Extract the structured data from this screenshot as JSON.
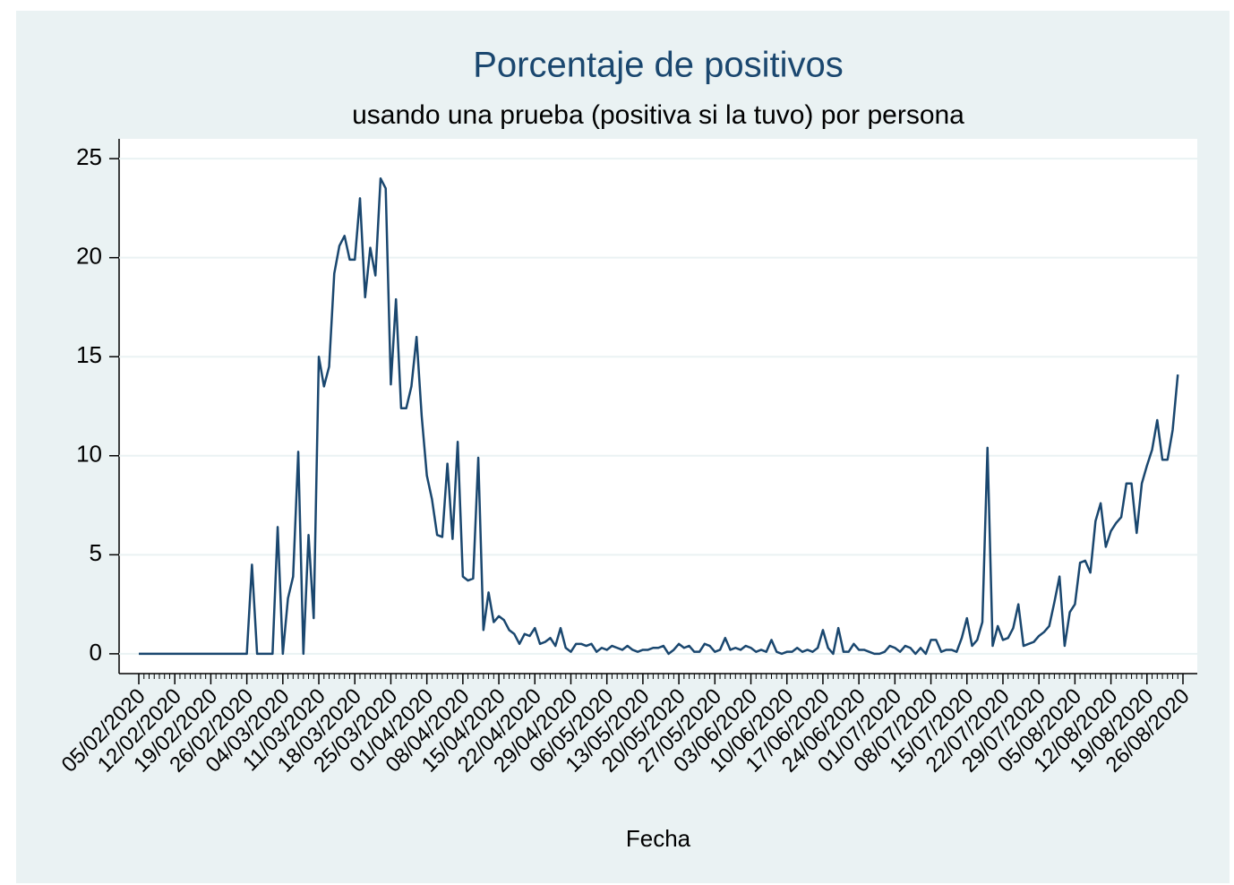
{
  "chart_data": {
    "type": "line",
    "title": "Porcentaje de positivos",
    "subtitle": "usando una prueba (positiva si la tuvo) por persona",
    "xlabel": "Fecha",
    "color": "#1a476f",
    "grid": true,
    "x": [
      "05/02/2020",
      "06/02/2020",
      "07/02/2020",
      "08/02/2020",
      "09/02/2020",
      "10/02/2020",
      "11/02/2020",
      "12/02/2020",
      "13/02/2020",
      "14/02/2020",
      "15/02/2020",
      "16/02/2020",
      "17/02/2020",
      "18/02/2020",
      "19/02/2020",
      "20/02/2020",
      "21/02/2020",
      "22/02/2020",
      "23/02/2020",
      "24/02/2020",
      "25/02/2020",
      "26/02/2020",
      "27/02/2020",
      "28/02/2020",
      "29/02/2020",
      "01/03/2020",
      "02/03/2020",
      "03/03/2020",
      "04/03/2020",
      "05/03/2020",
      "06/03/2020",
      "07/03/2020",
      "08/03/2020",
      "09/03/2020",
      "10/03/2020",
      "11/03/2020",
      "12/03/2020",
      "13/03/2020",
      "14/03/2020",
      "15/03/2020",
      "16/03/2020",
      "17/03/2020",
      "18/03/2020",
      "19/03/2020",
      "20/03/2020",
      "21/03/2020",
      "22/03/2020",
      "23/03/2020",
      "24/03/2020",
      "25/03/2020",
      "26/03/2020",
      "27/03/2020",
      "28/03/2020",
      "29/03/2020",
      "30/03/2020",
      "31/03/2020",
      "01/04/2020",
      "02/04/2020",
      "03/04/2020",
      "04/04/2020",
      "05/04/2020",
      "06/04/2020",
      "07/04/2020",
      "08/04/2020",
      "09/04/2020",
      "10/04/2020",
      "11/04/2020",
      "12/04/2020",
      "13/04/2020",
      "14/04/2020",
      "15/04/2020",
      "16/04/2020",
      "17/04/2020",
      "18/04/2020",
      "19/04/2020",
      "20/04/2020",
      "21/04/2020",
      "22/04/2020",
      "23/04/2020",
      "24/04/2020",
      "25/04/2020",
      "26/04/2020",
      "27/04/2020",
      "28/04/2020",
      "29/04/2020",
      "30/04/2020",
      "01/05/2020",
      "02/05/2020",
      "03/05/2020",
      "04/05/2020",
      "05/05/2020",
      "06/05/2020",
      "07/05/2020",
      "08/05/2020",
      "09/05/2020",
      "10/05/2020",
      "11/05/2020",
      "12/05/2020",
      "13/05/2020",
      "14/05/2020",
      "15/05/2020",
      "16/05/2020",
      "17/05/2020",
      "18/05/2020",
      "19/05/2020",
      "20/05/2020",
      "21/05/2020",
      "22/05/2020",
      "23/05/2020",
      "24/05/2020",
      "25/05/2020",
      "26/05/2020",
      "27/05/2020",
      "28/05/2020",
      "29/05/2020",
      "30/05/2020",
      "31/05/2020",
      "01/06/2020",
      "02/06/2020",
      "03/06/2020",
      "04/06/2020",
      "05/06/2020",
      "06/06/2020",
      "07/06/2020",
      "08/06/2020",
      "09/06/2020",
      "10/06/2020",
      "11/06/2020",
      "12/06/2020",
      "13/06/2020",
      "14/06/2020",
      "15/06/2020",
      "16/06/2020",
      "17/06/2020",
      "18/06/2020",
      "19/06/2020",
      "20/06/2020",
      "21/06/2020",
      "22/06/2020",
      "23/06/2020",
      "24/06/2020",
      "25/06/2020",
      "26/06/2020",
      "27/06/2020",
      "28/06/2020",
      "29/06/2020",
      "30/06/2020",
      "01/07/2020",
      "02/07/2020",
      "03/07/2020",
      "04/07/2020",
      "05/07/2020",
      "06/07/2020",
      "07/07/2020",
      "08/07/2020",
      "09/07/2020",
      "10/07/2020",
      "11/07/2020",
      "12/07/2020",
      "13/07/2020",
      "14/07/2020",
      "15/07/2020",
      "16/07/2020",
      "17/07/2020",
      "18/07/2020",
      "19/07/2020",
      "20/07/2020",
      "21/07/2020",
      "22/07/2020",
      "23/07/2020",
      "24/07/2020",
      "25/07/2020",
      "26/07/2020",
      "27/07/2020",
      "28/07/2020",
      "29/07/2020",
      "30/07/2020",
      "31/07/2020",
      "01/08/2020",
      "02/08/2020",
      "03/08/2020",
      "04/08/2020",
      "05/08/2020",
      "06/08/2020",
      "07/08/2020",
      "08/08/2020",
      "09/08/2020",
      "10/08/2020",
      "11/08/2020",
      "12/08/2020",
      "13/08/2020",
      "14/08/2020",
      "15/08/2020",
      "16/08/2020",
      "17/08/2020",
      "18/08/2020",
      "19/08/2020",
      "20/08/2020",
      "21/08/2020",
      "22/08/2020",
      "23/08/2020",
      "24/08/2020",
      "25/08/2020"
    ],
    "values": [
      0,
      0,
      0,
      0,
      0,
      0,
      0,
      0,
      0,
      0,
      0,
      0,
      0,
      0,
      0,
      0,
      0,
      0,
      0,
      0,
      0,
      0,
      4.5,
      0,
      0,
      0,
      0,
      6.4,
      0,
      2.8,
      3.9,
      10.2,
      0,
      6,
      1.8,
      15,
      13.5,
      14.5,
      19.2,
      20.6,
      21.1,
      19.9,
      19.9,
      23,
      18,
      20.5,
      19.1,
      24,
      23.5,
      13.6,
      17.9,
      12.4,
      12.4,
      13.5,
      16,
      12,
      9,
      7.8,
      6,
      5.9,
      9.6,
      5.8,
      10.7,
      3.9,
      3.7,
      3.8,
      9.9,
      1.2,
      3.1,
      1.6,
      1.9,
      1.7,
      1.2,
      1.0,
      0.5,
      1.0,
      0.9,
      1.3,
      0.5,
      0.6,
      0.8,
      0.4,
      1.3,
      0.3,
      0.1,
      0.5,
      0.5,
      0.4,
      0.5,
      0.1,
      0.3,
      0.2,
      0.4,
      0.3,
      0.2,
      0.4,
      0.2,
      0.1,
      0.2,
      0.2,
      0.3,
      0.3,
      0.4,
      0.0,
      0.2,
      0.5,
      0.3,
      0.4,
      0.1,
      0.1,
      0.5,
      0.4,
      0.1,
      0.2,
      0.8,
      0.2,
      0.3,
      0.2,
      0.4,
      0.3,
      0.1,
      0.2,
      0.1,
      0.7,
      0.1,
      0.0,
      0.1,
      0.1,
      0.3,
      0.1,
      0.2,
      0.1,
      0.3,
      1.2,
      0.3,
      0.0,
      1.3,
      0.1,
      0.1,
      0.5,
      0.2,
      0.2,
      0.1,
      0.0,
      0.0,
      0.1,
      0.4,
      0.3,
      0.1,
      0.4,
      0.3,
      0.0,
      0.3,
      0.0,
      0.7,
      0.7,
      0.1,
      0.2,
      0.2,
      0.1,
      0.8,
      1.8,
      0.4,
      0.7,
      1.6,
      10.4,
      0.4,
      1.4,
      0.7,
      0.8,
      1.3,
      2.5,
      0.4,
      0.5,
      0.6,
      0.9,
      1.1,
      1.4,
      2.6,
      3.9,
      0.4,
      2.1,
      2.5,
      4.6,
      4.7,
      4.1,
      6.7,
      7.6,
      5.4,
      6.2,
      6.6,
      6.9,
      8.6,
      8.6,
      6.1,
      8.6,
      9.5,
      10.3,
      11.8,
      9.8,
      9.8,
      11.3,
      14.1
    ],
    "xlim": [
      "05/02/2020",
      "26/08/2020"
    ],
    "xticks": [
      "05/02/2020",
      "12/02/2020",
      "19/02/2020",
      "26/02/2020",
      "04/03/2020",
      "11/03/2020",
      "18/03/2020",
      "25/03/2020",
      "01/04/2020",
      "08/04/2020",
      "15/04/2020",
      "22/04/2020",
      "29/04/2020",
      "06/05/2020",
      "13/05/2020",
      "20/05/2020",
      "27/05/2020",
      "03/06/2020",
      "10/06/2020",
      "17/06/2020",
      "24/06/2020",
      "01/07/2020",
      "08/07/2020",
      "15/07/2020",
      "22/07/2020",
      "29/07/2020",
      "05/08/2020",
      "12/08/2020",
      "19/08/2020",
      "26/08/2020"
    ],
    "ylim": [
      -1,
      26
    ],
    "yticks": [
      0,
      5,
      10,
      15,
      20,
      25
    ]
  }
}
